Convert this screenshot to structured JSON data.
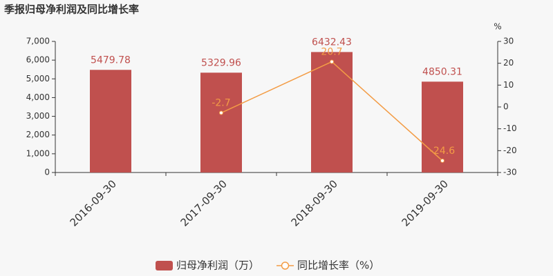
{
  "chart_data": {
    "type": "bar-line",
    "title": "季报归母净利润及同比增长率",
    "y2_label": "%",
    "categories": [
      "2016-09-30",
      "2017-09-30",
      "2018-09-30",
      "2019-09-30"
    ],
    "series": [
      {
        "name": "归母净利润（万）",
        "type": "bar",
        "color": "#c0504e",
        "values": [
          5479.78,
          5329.96,
          6432.43,
          4850.31
        ]
      },
      {
        "name": "同比增长率（%）",
        "type": "line",
        "axis": "y2",
        "color": "#f39c45",
        "values": [
          null,
          -2.7,
          20.7,
          -24.6
        ]
      }
    ],
    "ylim": [
      0,
      7000
    ],
    "yticks": [
      0,
      {
        "value": 1000,
        "label": "1,000"
      },
      {
        "value": 2000,
        "label": "2,000"
      },
      {
        "value": 3000,
        "label": "3,000"
      },
      {
        "value": 4000,
        "label": "4,000"
      },
      {
        "value": 5000,
        "label": "5,000"
      },
      {
        "value": 6000,
        "label": "6,000"
      },
      {
        "value": 7000,
        "label": "7,000"
      }
    ],
    "y2lim": [
      -30,
      30
    ],
    "y2ticks": [
      -30,
      -20,
      -10,
      0,
      10,
      20,
      30
    ],
    "grid": false
  }
}
